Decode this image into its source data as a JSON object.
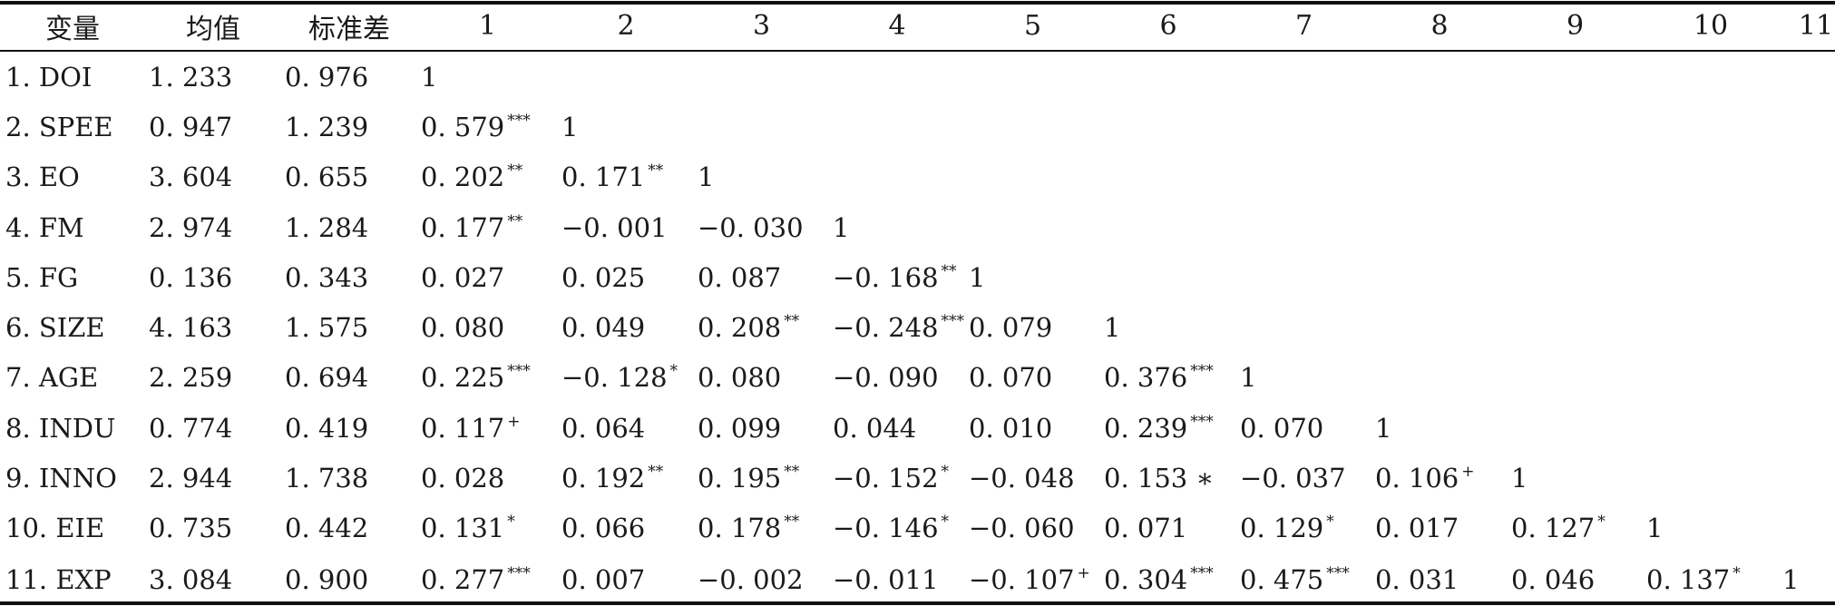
{
  "table": {
    "headers": [
      "变量",
      "均值",
      "标准差",
      "1",
      "2",
      "3",
      "4",
      "5",
      "6",
      "7",
      "8",
      "9",
      "10",
      "11"
    ],
    "rows": [
      {
        "label": "1. DOI",
        "mean": "1. 233",
        "sd": "0. 976",
        "cells": [
          {
            "v": "1",
            "s": ""
          }
        ]
      },
      {
        "label": "2. SPEE",
        "mean": "0. 947",
        "sd": "1. 239",
        "cells": [
          {
            "v": "0. 579",
            "s": "***"
          },
          {
            "v": "1",
            "s": ""
          }
        ]
      },
      {
        "label": "3. EO",
        "mean": "3. 604",
        "sd": "0. 655",
        "cells": [
          {
            "v": "0. 202",
            "s": "**"
          },
          {
            "v": "0. 171",
            "s": "**"
          },
          {
            "v": "1",
            "s": ""
          }
        ]
      },
      {
        "label": "4. FM",
        "mean": "2. 974",
        "sd": "1. 284",
        "cells": [
          {
            "v": "0. 177",
            "s": "**"
          },
          {
            "v": "−0. 001",
            "s": ""
          },
          {
            "v": "−0. 030",
            "s": ""
          },
          {
            "v": "1",
            "s": ""
          }
        ]
      },
      {
        "label": "5. FG",
        "mean": "0. 136",
        "sd": "0. 343",
        "cells": [
          {
            "v": "0. 027",
            "s": ""
          },
          {
            "v": "0. 025",
            "s": ""
          },
          {
            "v": "0. 087",
            "s": ""
          },
          {
            "v": "−0. 168",
            "s": "**"
          },
          {
            "v": "1",
            "s": ""
          }
        ]
      },
      {
        "label": "6. SIZE",
        "mean": "4. 163",
        "sd": "1. 575",
        "cells": [
          {
            "v": "0. 080",
            "s": ""
          },
          {
            "v": "0. 049",
            "s": ""
          },
          {
            "v": "0. 208",
            "s": "**"
          },
          {
            "v": "−0. 248",
            "s": "***"
          },
          {
            "v": "0. 079",
            "s": ""
          },
          {
            "v": "1",
            "s": ""
          }
        ]
      },
      {
        "label": "7. AGE",
        "mean": "2. 259",
        "sd": "0. 694",
        "cells": [
          {
            "v": "0. 225",
            "s": "***"
          },
          {
            "v": "−0. 128",
            "s": "*"
          },
          {
            "v": "0. 080",
            "s": ""
          },
          {
            "v": "−0. 090",
            "s": ""
          },
          {
            "v": "0. 070",
            "s": ""
          },
          {
            "v": "0. 376",
            "s": "***"
          },
          {
            "v": "1",
            "s": ""
          }
        ]
      },
      {
        "label": "8. INDU",
        "mean": "0. 774",
        "sd": "0. 419",
        "cells": [
          {
            "v": "0. 117",
            "s": "+"
          },
          {
            "v": "0. 064",
            "s": ""
          },
          {
            "v": "0. 099",
            "s": ""
          },
          {
            "v": "0. 044",
            "s": ""
          },
          {
            "v": "0. 010",
            "s": ""
          },
          {
            "v": "0. 239",
            "s": "***"
          },
          {
            "v": "0. 070",
            "s": ""
          },
          {
            "v": "1",
            "s": ""
          }
        ]
      },
      {
        "label": "9. INNO",
        "mean": "2. 944",
        "sd": "1. 738",
        "cells": [
          {
            "v": "0. 028",
            "s": ""
          },
          {
            "v": "0. 192",
            "s": "**"
          },
          {
            "v": "0. 195",
            "s": "**"
          },
          {
            "v": "−0. 152",
            "s": "*"
          },
          {
            "v": "−0. 048",
            "s": ""
          },
          {
            "v": "0. 153 ∗",
            "s": ""
          },
          {
            "v": "−0. 037",
            "s": ""
          },
          {
            "v": "0. 106",
            "s": "+"
          },
          {
            "v": "1",
            "s": ""
          }
        ]
      },
      {
        "label": "10. EIE",
        "mean": "0. 735",
        "sd": "0. 442",
        "cells": [
          {
            "v": "0. 131",
            "s": "*"
          },
          {
            "v": "0. 066",
            "s": ""
          },
          {
            "v": "0. 178",
            "s": "**"
          },
          {
            "v": "−0. 146",
            "s": "*"
          },
          {
            "v": "−0. 060",
            "s": ""
          },
          {
            "v": "0. 071",
            "s": ""
          },
          {
            "v": "0. 129",
            "s": "*"
          },
          {
            "v": "0. 017",
            "s": ""
          },
          {
            "v": "0. 127",
            "s": "*"
          },
          {
            "v": "1",
            "s": ""
          }
        ]
      },
      {
        "label": "11. EXP",
        "mean": "3. 084",
        "sd": "0. 900",
        "cells": [
          {
            "v": "0. 277",
            "s": "***"
          },
          {
            "v": "0. 007",
            "s": ""
          },
          {
            "v": "−0. 002",
            "s": ""
          },
          {
            "v": "−0. 011",
            "s": ""
          },
          {
            "v": "−0. 107",
            "s": "+"
          },
          {
            "v": "0. 304",
            "s": "***"
          },
          {
            "v": "0. 475",
            "s": "***"
          },
          {
            "v": "0. 031",
            "s": ""
          },
          {
            "v": "0. 046",
            "s": ""
          },
          {
            "v": "0. 137",
            "s": "*"
          },
          {
            "v": "1",
            "s": ""
          }
        ]
      }
    ]
  }
}
